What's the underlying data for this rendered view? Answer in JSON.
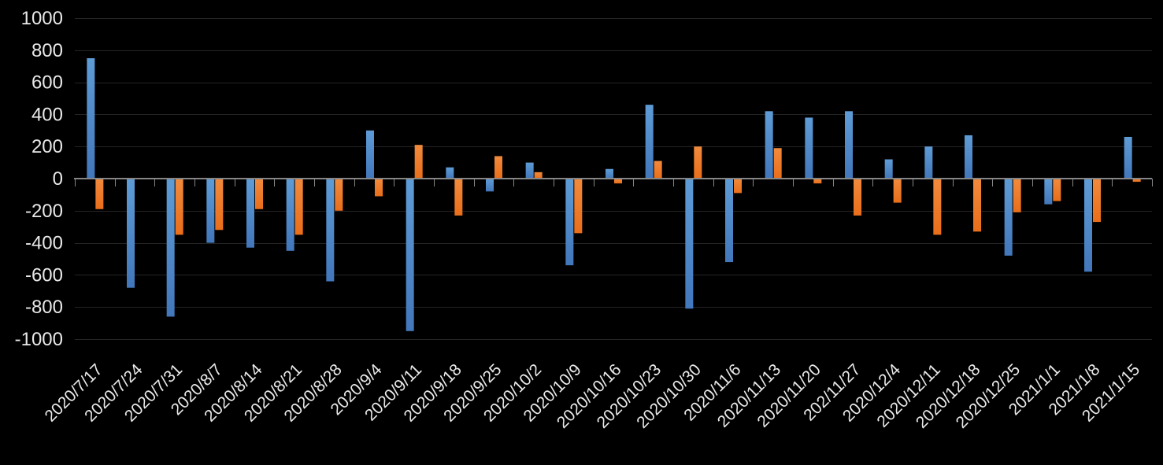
{
  "chart_data": {
    "type": "bar",
    "title": "",
    "categories": [
      "2020/7/17",
      "2020/7/24",
      "2020/7/31",
      "2020/8/7",
      "2020/8/14",
      "2020/8/21",
      "2020/8/28",
      "2020/9/4",
      "2020/9/11",
      "2020/9/18",
      "2020/9/25",
      "2020/10/2",
      "2020/10/9",
      "2020/10/16",
      "2020/10/23",
      "2020/10/30",
      "2020/11/6",
      "2020/11/13",
      "2020/11/20",
      "202/11/27",
      "2020/12/4",
      "2020/12/11",
      "2020/12/18",
      "2020/12/25",
      "2021/1/1",
      "2021/1/8",
      "2021/1/15"
    ],
    "series": [
      {
        "name": "series-blue",
        "color_top": "#5e9cd6",
        "color_bottom": "#4277bb",
        "values": [
          750,
          -680,
          -860,
          -400,
          -430,
          -450,
          -640,
          300,
          -950,
          70,
          -80,
          100,
          -540,
          60,
          460,
          -810,
          -520,
          420,
          380,
          420,
          120,
          200,
          270,
          -480,
          -160,
          -580,
          260
        ]
      },
      {
        "name": "series-orange",
        "color_top": "#f18a3d",
        "color_bottom": "#e96e1a",
        "values": [
          -190,
          0,
          -350,
          -320,
          -190,
          -350,
          -200,
          -110,
          210,
          -230,
          140,
          40,
          -340,
          -30,
          110,
          200,
          -90,
          190,
          -30,
          -230,
          -150,
          -350,
          -330,
          -210,
          -140,
          -270,
          -20
        ]
      }
    ],
    "y_tick_labels": [
      "1000",
      "800",
      "600",
      "400",
      "200",
      "0",
      "-200",
      "-400",
      "-600",
      "-800",
      "-1000"
    ],
    "ylim": [
      -1000,
      1000
    ],
    "grid": true,
    "legend": "none",
    "colors": {
      "background": "#000000",
      "gridline": "#242424",
      "axis": "#868686",
      "y_label": "#e8e8e8",
      "x_label": "#eaeaea"
    }
  }
}
